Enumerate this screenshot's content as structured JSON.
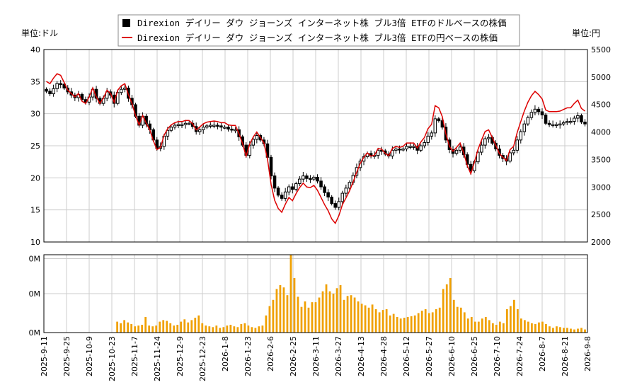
{
  "chart_data": {
    "type": "candlestick+line+bar",
    "title": "",
    "legend": {
      "placement": "top-center",
      "items": [
        {
          "label": "Direxion デイリー ダウ ジョーンズ インターネット株 ブル3倍 ETFのドルベースの株価",
          "color": "#000000",
          "symbol": "square"
        },
        {
          "label": "Direxion デイリー ダウ ジョーンズ インターネット株 ブル3倍 ETFの円ベースの株価",
          "color": "#dd0000",
          "symbol": "line"
        }
      ]
    },
    "left_axis_label": "単位:ドル",
    "right_axis_label": "単位:円",
    "left_ylim": [
      10,
      40
    ],
    "left_ticks": [
      "10",
      "15",
      "20",
      "25",
      "30",
      "35",
      "40"
    ],
    "right_ylim": [
      2000,
      5500
    ],
    "right_ticks": [
      "2000",
      "2500",
      "3000",
      "3500",
      "4000",
      "4500",
      "5000",
      "5500"
    ],
    "volume_ticks": [
      "0M",
      "0M",
      "0M"
    ],
    "x_ticks": [
      "2025-9-11",
      "2025-9-25",
      "2025-10-9",
      "2025-10-23",
      "2025-11-7",
      "2025-11-24",
      "2025-12-9",
      "2025-12-23",
      "2026-1-8",
      "2026-1-23",
      "2026-2-6",
      "2026-2-25",
      "2026-3-11",
      "2026-3-27",
      "2026-4-13",
      "2026-4-28",
      "2026-5-12",
      "2026-5-27",
      "2026-6-10",
      "2026-6-25",
      "2026-7-10",
      "2026-7-24",
      "2026-8-7",
      "2026-8-21",
      "2026-9-8"
    ],
    "grid": true,
    "colors": {
      "candle": "#000000",
      "line": "#dd0000",
      "volume": "#f0a000",
      "grid": "#cccccc"
    },
    "price_close_usd": [
      33.5,
      33.1,
      33.9,
      34.7,
      34.6,
      34.0,
      33.4,
      32.9,
      32.5,
      33.0,
      32.2,
      31.8,
      32.6,
      33.8,
      32.4,
      31.6,
      32.4,
      33.4,
      32.9,
      31.6,
      33.3,
      33.8,
      34.0,
      32.4,
      31.4,
      29.6,
      28.2,
      29.6,
      28.4,
      27.5,
      25.9,
      24.6,
      24.9,
      26.5,
      27.4,
      27.9,
      28.2,
      28.3,
      28.3,
      28.5,
      28.5,
      28.0,
      27.2,
      27.5,
      27.9,
      28.1,
      28.2,
      28.2,
      28.1,
      27.9,
      27.9,
      27.6,
      27.5,
      27.5,
      26.4,
      25.1,
      23.5,
      25.1,
      26.0,
      26.6,
      25.9,
      25.3,
      23.2,
      20.3,
      18.4,
      17.3,
      16.8,
      17.8,
      18.6,
      18.2,
      19.1,
      19.8,
      20.3,
      19.9,
      19.8,
      20.1,
      19.5,
      18.6,
      17.7,
      17.0,
      16.0,
      15.4,
      16.3,
      17.6,
      18.4,
      19.3,
      20.4,
      21.6,
      22.6,
      23.3,
      23.8,
      23.4,
      23.5,
      24.3,
      24.2,
      23.7,
      23.4,
      24.3,
      24.5,
      24.4,
      24.5,
      24.9,
      24.9,
      24.9,
      24.3,
      25.0,
      25.5,
      26.5,
      27.0,
      29.2,
      28.9,
      27.9,
      25.9,
      24.4,
      23.8,
      24.3,
      24.8,
      23.6,
      22.1,
      21.1,
      22.5,
      24.0,
      25.1,
      26.1,
      26.3,
      25.4,
      24.5,
      23.5,
      23.0,
      22.6,
      23.9,
      24.3,
      25.9,
      27.2,
      28.4,
      29.4,
      30.2,
      30.7,
      30.3,
      29.8,
      28.5,
      28.3,
      28.3,
      28.3,
      28.4,
      28.6,
      28.8,
      28.8,
      29.3,
      29.7,
      28.7,
      28.4
    ],
    "price_close_jpy": [
      4920,
      4880,
      4980,
      5060,
      5030,
      4900,
      4760,
      4700,
      4640,
      4700,
      4560,
      4520,
      4640,
      4800,
      4640,
      4520,
      4620,
      4760,
      4700,
      4540,
      4760,
      4840,
      4880,
      4680,
      4520,
      4300,
      4130,
      4300,
      4160,
      4040,
      3840,
      3680,
      3720,
      3940,
      4060,
      4130,
      4170,
      4190,
      4190,
      4210,
      4210,
      4150,
      4040,
      4090,
      4150,
      4180,
      4190,
      4200,
      4190,
      4170,
      4170,
      4130,
      4120,
      4120,
      3970,
      3790,
      3560,
      3780,
      3910,
      4000,
      3900,
      3800,
      3500,
      3050,
      2760,
      2610,
      2540,
      2690,
      2810,
      2750,
      2880,
      2990,
      3070,
      3000,
      2990,
      3030,
      2940,
      2810,
      2680,
      2570,
      2420,
      2340,
      2480,
      2680,
      2800,
      2930,
      3090,
      3270,
      3430,
      3540,
      3620,
      3560,
      3580,
      3700,
      3690,
      3610,
      3570,
      3700,
      3740,
      3720,
      3740,
      3800,
      3800,
      3800,
      3710,
      3820,
      3900,
      4060,
      4140,
      4480,
      4440,
      4280,
      3970,
      3740,
      3650,
      3720,
      3800,
      3620,
      3390,
      3240,
      3450,
      3680,
      3850,
      4010,
      4040,
      3900,
      3760,
      3610,
      3540,
      3480,
      3680,
      3740,
      3990,
      4190,
      4380,
      4540,
      4660,
      4740,
      4680,
      4600,
      4400,
      4370,
      4370,
      4370,
      4380,
      4410,
      4440,
      4440,
      4520,
      4580,
      4430,
      4380
    ],
    "volume_relative": [
      0,
      0,
      0,
      0,
      0,
      0,
      0,
      0,
      0,
      0,
      0,
      0,
      0,
      0,
      0,
      0,
      0,
      0,
      0,
      0,
      0.14,
      0.12,
      0.16,
      0.13,
      0.11,
      0.08,
      0.09,
      0.1,
      0.2,
      0.09,
      0.08,
      0.09,
      0.14,
      0.16,
      0.15,
      0.12,
      0.09,
      0.1,
      0.14,
      0.17,
      0.13,
      0.16,
      0.19,
      0.22,
      0.12,
      0.09,
      0.08,
      0.07,
      0.09,
      0.06,
      0.07,
      0.09,
      0.1,
      0.08,
      0.07,
      0.11,
      0.12,
      0.09,
      0.07,
      0.06,
      0.08,
      0.09,
      0.22,
      0.34,
      0.42,
      0.56,
      0.61,
      0.58,
      0.48,
      1.0,
      0.7,
      0.46,
      0.33,
      0.4,
      0.32,
      0.39,
      0.39,
      0.45,
      0.53,
      0.62,
      0.53,
      0.5,
      0.57,
      0.61,
      0.42,
      0.47,
      0.48,
      0.45,
      0.4,
      0.37,
      0.35,
      0.32,
      0.36,
      0.3,
      0.26,
      0.29,
      0.3,
      0.22,
      0.24,
      0.2,
      0.18,
      0.19,
      0.2,
      0.21,
      0.22,
      0.25,
      0.28,
      0.3,
      0.25,
      0.26,
      0.3,
      0.32,
      0.56,
      0.62,
      0.7,
      0.42,
      0.33,
      0.32,
      0.26,
      0.18,
      0.2,
      0.14,
      0.14,
      0.18,
      0.2,
      0.16,
      0.12,
      0.1,
      0.14,
      0.12,
      0.3,
      0.34,
      0.42,
      0.3,
      0.18,
      0.16,
      0.14,
      0.12,
      0.11,
      0.13,
      0.14,
      0.11,
      0.08,
      0.06,
      0.08,
      0.07,
      0.06,
      0.06,
      0.05,
      0.04,
      0.05,
      0.06,
      0.04
    ]
  }
}
